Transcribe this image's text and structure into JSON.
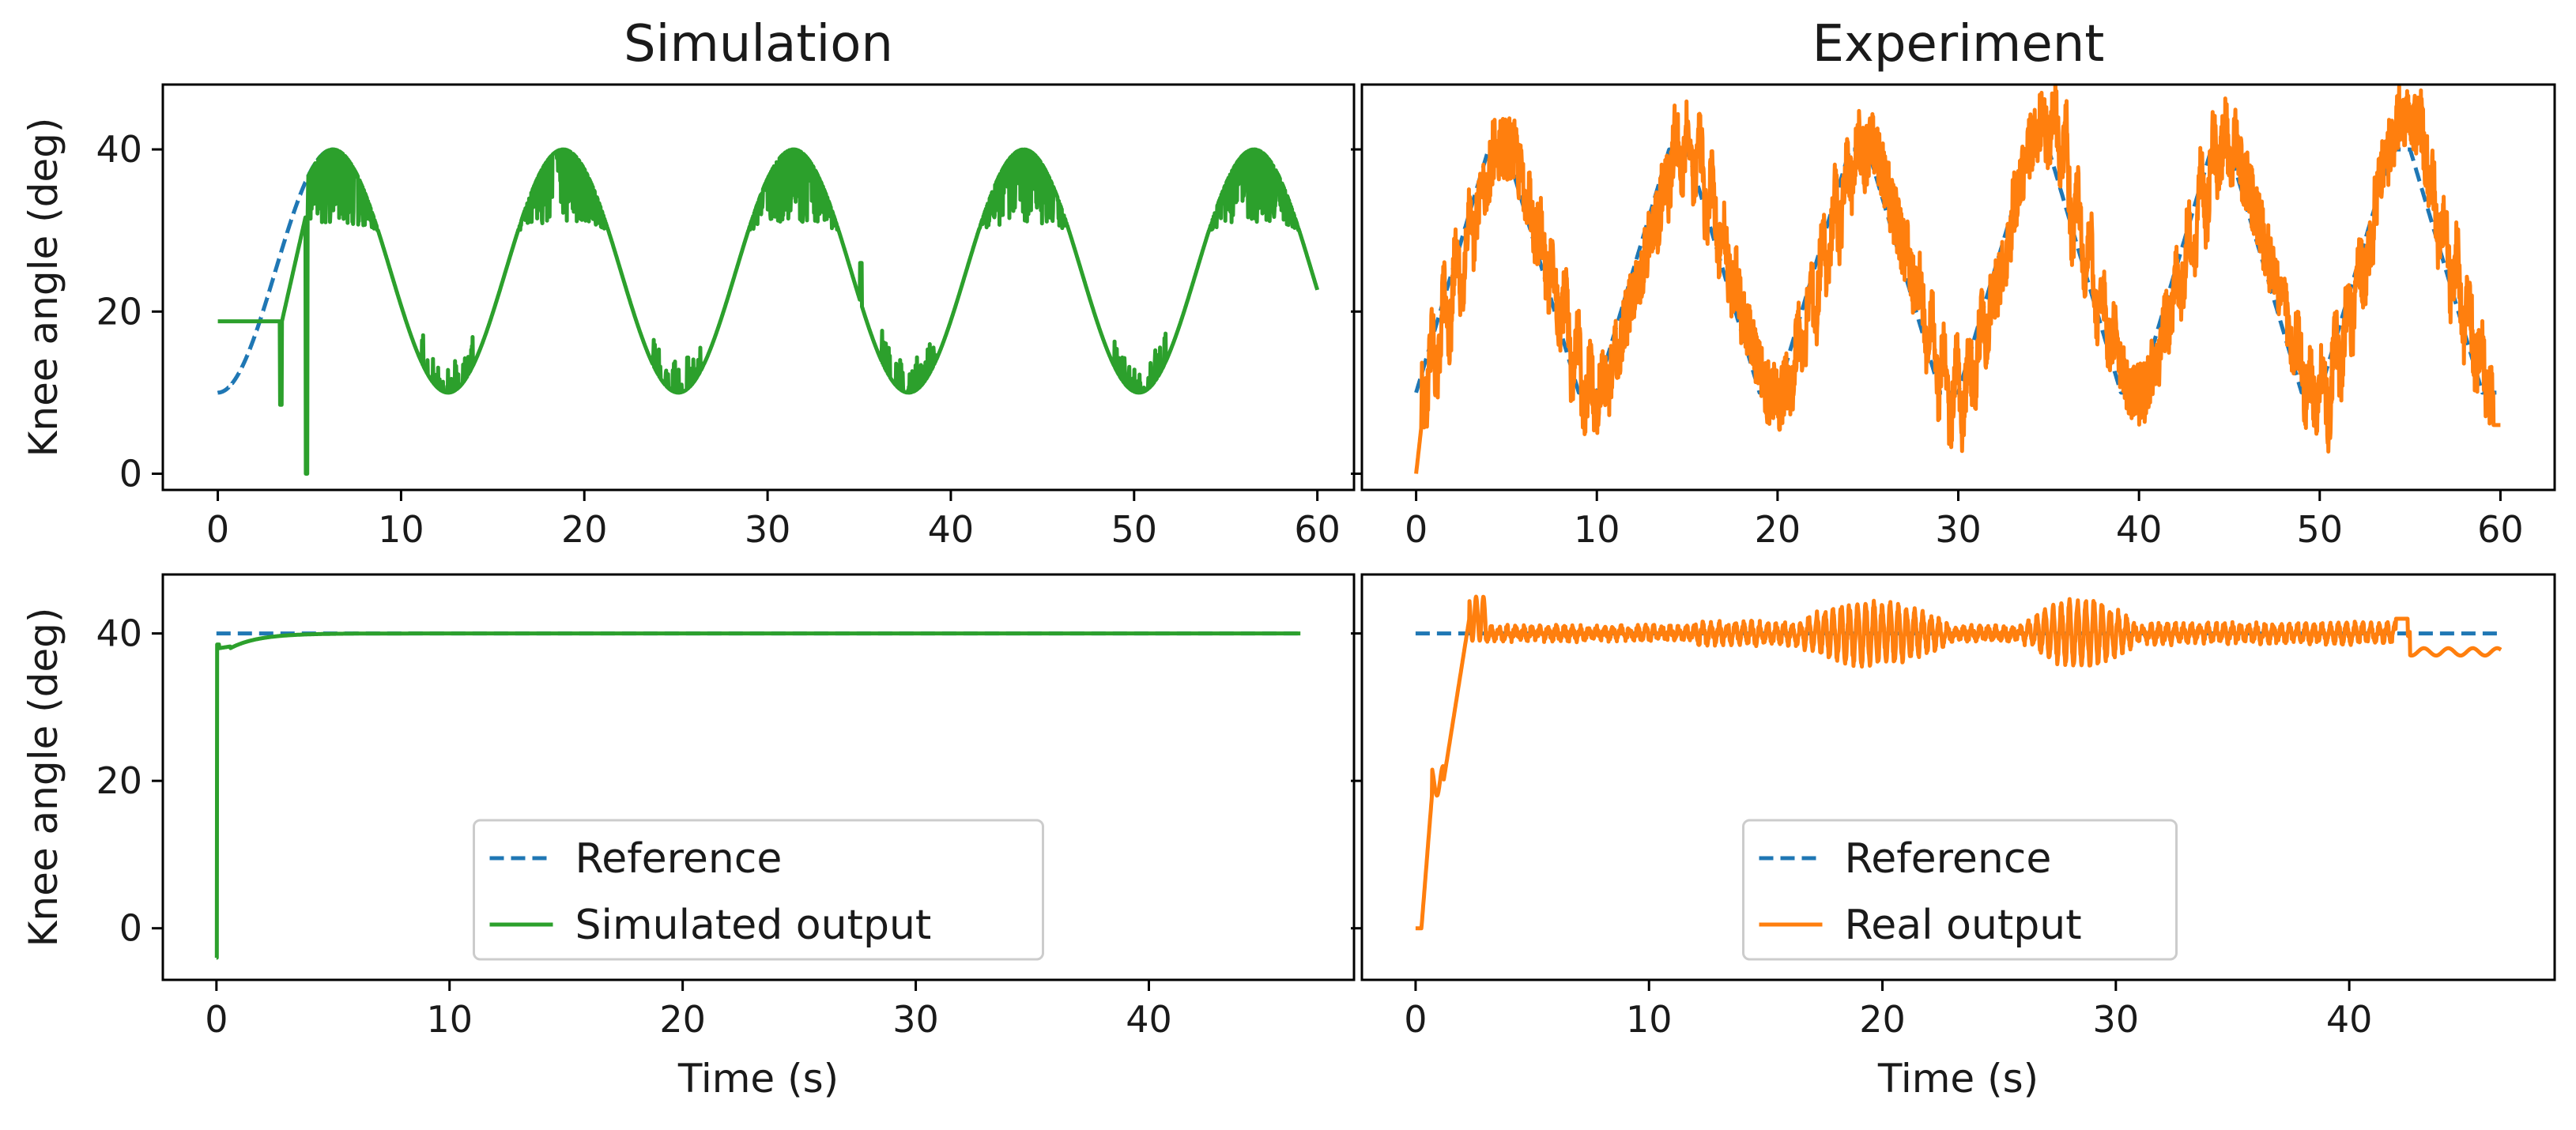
{
  "colors": {
    "reference": "#1f77b4",
    "simulated": "#2ca02c",
    "real": "#ff7f0e",
    "axes": "#000000"
  },
  "chart_data": [
    {
      "id": "sim-sine",
      "type": "line",
      "title": "Simulation",
      "xlabel": "",
      "ylabel": "Knee angle (deg)",
      "xlim": [
        -3,
        62
      ],
      "ylim": [
        -2,
        48
      ],
      "xticks": [
        0,
        10,
        20,
        30,
        40,
        50,
        60
      ],
      "yticks": [
        0,
        20,
        40
      ],
      "tick_labels_y": true,
      "series": [
        {
          "name": "Reference",
          "role": "reference",
          "style": "dashed",
          "x_range": [
            0,
            6.3
          ],
          "func": "sine",
          "period": 12.566,
          "center": 25,
          "amp": 15,
          "phase": 0
        },
        {
          "name": "Simulated output",
          "role": "simulated",
          "style": "solid",
          "x_range": [
            0,
            60
          ],
          "func": "sim_sine"
        }
      ]
    },
    {
      "id": "exp-sine",
      "type": "line",
      "title": "Experiment",
      "xlabel": "",
      "ylabel": "",
      "xlim": [
        -3,
        63
      ],
      "ylim": [
        -2,
        48
      ],
      "xticks": [
        0,
        10,
        20,
        30,
        40,
        50,
        60
      ],
      "yticks": [
        0,
        20,
        40
      ],
      "tick_labels_y": false,
      "series": [
        {
          "name": "Reference",
          "role": "reference",
          "style": "dashed",
          "x_range": [
            0,
            60
          ],
          "func": "trapezoid",
          "period": 10,
          "low": 10,
          "high": 40
        },
        {
          "name": "Real output",
          "role": "real",
          "style": "solid",
          "x_range": [
            0,
            60
          ],
          "func": "exp_sine"
        }
      ]
    },
    {
      "id": "sim-step",
      "type": "line",
      "title": "",
      "xlabel": "Time (s)",
      "ylabel": "Knee angle (deg)",
      "xlim": [
        -2.3,
        48.8
      ],
      "ylim": [
        -7,
        48
      ],
      "xticks": [
        0,
        10,
        20,
        30,
        40
      ],
      "yticks": [
        0,
        20,
        40
      ],
      "tick_labels_y": true,
      "legend": {
        "position": "lower-center",
        "entries": [
          "Reference",
          "Simulated output"
        ]
      },
      "series": [
        {
          "name": "Reference",
          "role": "reference",
          "style": "dashed",
          "x_range": [
            0,
            46.5
          ],
          "func": "const",
          "value": 40
        },
        {
          "name": "Simulated output",
          "role": "simulated",
          "style": "solid",
          "x_range": [
            0,
            46.5
          ],
          "func": "sim_step"
        }
      ]
    },
    {
      "id": "exp-step",
      "type": "line",
      "title": "",
      "xlabel": "Time (s)",
      "ylabel": "",
      "xlim": [
        -2.3,
        48.8
      ],
      "ylim": [
        -7,
        48
      ],
      "xticks": [
        0,
        10,
        20,
        30,
        40
      ],
      "yticks": [
        0,
        20,
        40
      ],
      "tick_labels_y": false,
      "legend": {
        "position": "lower-center",
        "entries": [
          "Reference",
          "Real output"
        ]
      },
      "series": [
        {
          "name": "Reference",
          "role": "reference",
          "style": "dashed",
          "x_range": [
            0,
            46.5
          ],
          "func": "const",
          "value": 40
        },
        {
          "name": "Real output",
          "role": "real",
          "style": "solid",
          "x_range": [
            0,
            46.5
          ],
          "func": "exp_step"
        }
      ]
    }
  ]
}
